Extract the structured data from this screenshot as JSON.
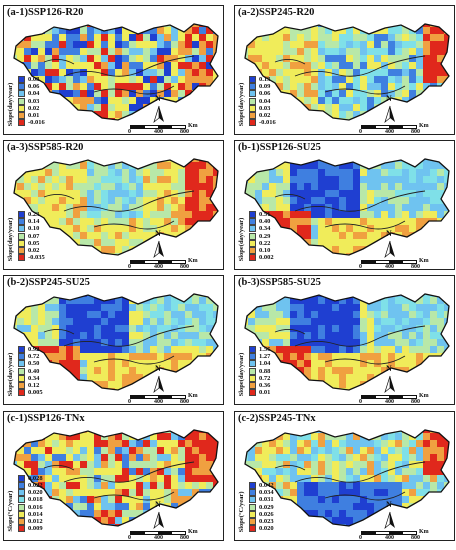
{
  "palette": {
    "ocean_blue": "#1f3fd1",
    "blue": "#3f7fe0",
    "light_blue": "#6fc3f0",
    "cyan": "#7fe0e8",
    "green": "#b8e8a8",
    "yellow": "#f0ec5a",
    "orange": "#f0a040",
    "red": "#e0281c",
    "border": "#111111",
    "river": "#222222"
  },
  "north_label": "N",
  "scale": {
    "unit": "Km",
    "ticks": [
      "0",
      "400",
      "800"
    ]
  },
  "panels": [
    {
      "title": "(a-1)SSP126-R20",
      "axis_title": "Slope(day/year)",
      "legend": [
        "0.08",
        "0.06",
        "0.04",
        "0.03",
        "0.02",
        "0.01",
        "-0.016"
      ],
      "theme": "patchy_warm"
    },
    {
      "title": "(a-2)SSP245-R20",
      "axis_title": "Slope(day/year)",
      "legend": [
        "0.13",
        "0.09",
        "0.06",
        "0.04",
        "0.03",
        "0.02",
        "-0.016"
      ],
      "theme": "cool_center_red_east"
    },
    {
      "title": "(a-3)SSP585-R20",
      "axis_title": "Slope(day/year)",
      "legend": [
        "0.23",
        "0.14",
        "0.10",
        "0.07",
        "0.05",
        "0.02",
        "-0.035"
      ],
      "theme": "yellow_red_east"
    },
    {
      "title": "(b-1)SSP126-SU25",
      "axis_title": "Slope(day/year)",
      "legend": [
        "0.51",
        "0.40",
        "0.34",
        "0.29",
        "0.22",
        "0.10",
        "0.002"
      ],
      "theme": "blue_north_red_west"
    },
    {
      "title": "(b-2)SSP245-SU25",
      "axis_title": "Slope(day/year)",
      "legend": [
        "0.92",
        "0.72",
        "0.50",
        "0.40",
        "0.34",
        "0.12",
        "0.005"
      ],
      "theme": "blue_north_red_west"
    },
    {
      "title": "(b-3)SSP585-SU25",
      "axis_title": "Slope(day/year)",
      "legend": [
        "1.56",
        "1.27",
        "1.04",
        "0.88",
        "0.72",
        "0.36",
        "0.01"
      ],
      "theme": "blue_north_red_west"
    },
    {
      "title": "(c-1)SSP126-TNx",
      "axis_title": "Slope(°C/year)",
      "legend": [
        "0.028",
        "0.022",
        "0.020",
        "0.018",
        "0.016",
        "0.014",
        "0.012",
        "0.009"
      ],
      "theme": "patchy_red_east"
    },
    {
      "title": "(c-2)SSP245-TNx",
      "axis_title": "Slope(°C/year)",
      "legend": [
        "0.042",
        "0.034",
        "0.031",
        "0.029",
        "0.026",
        "0.023",
        "0.020"
      ],
      "theme": "blue_center_red_east"
    }
  ]
}
